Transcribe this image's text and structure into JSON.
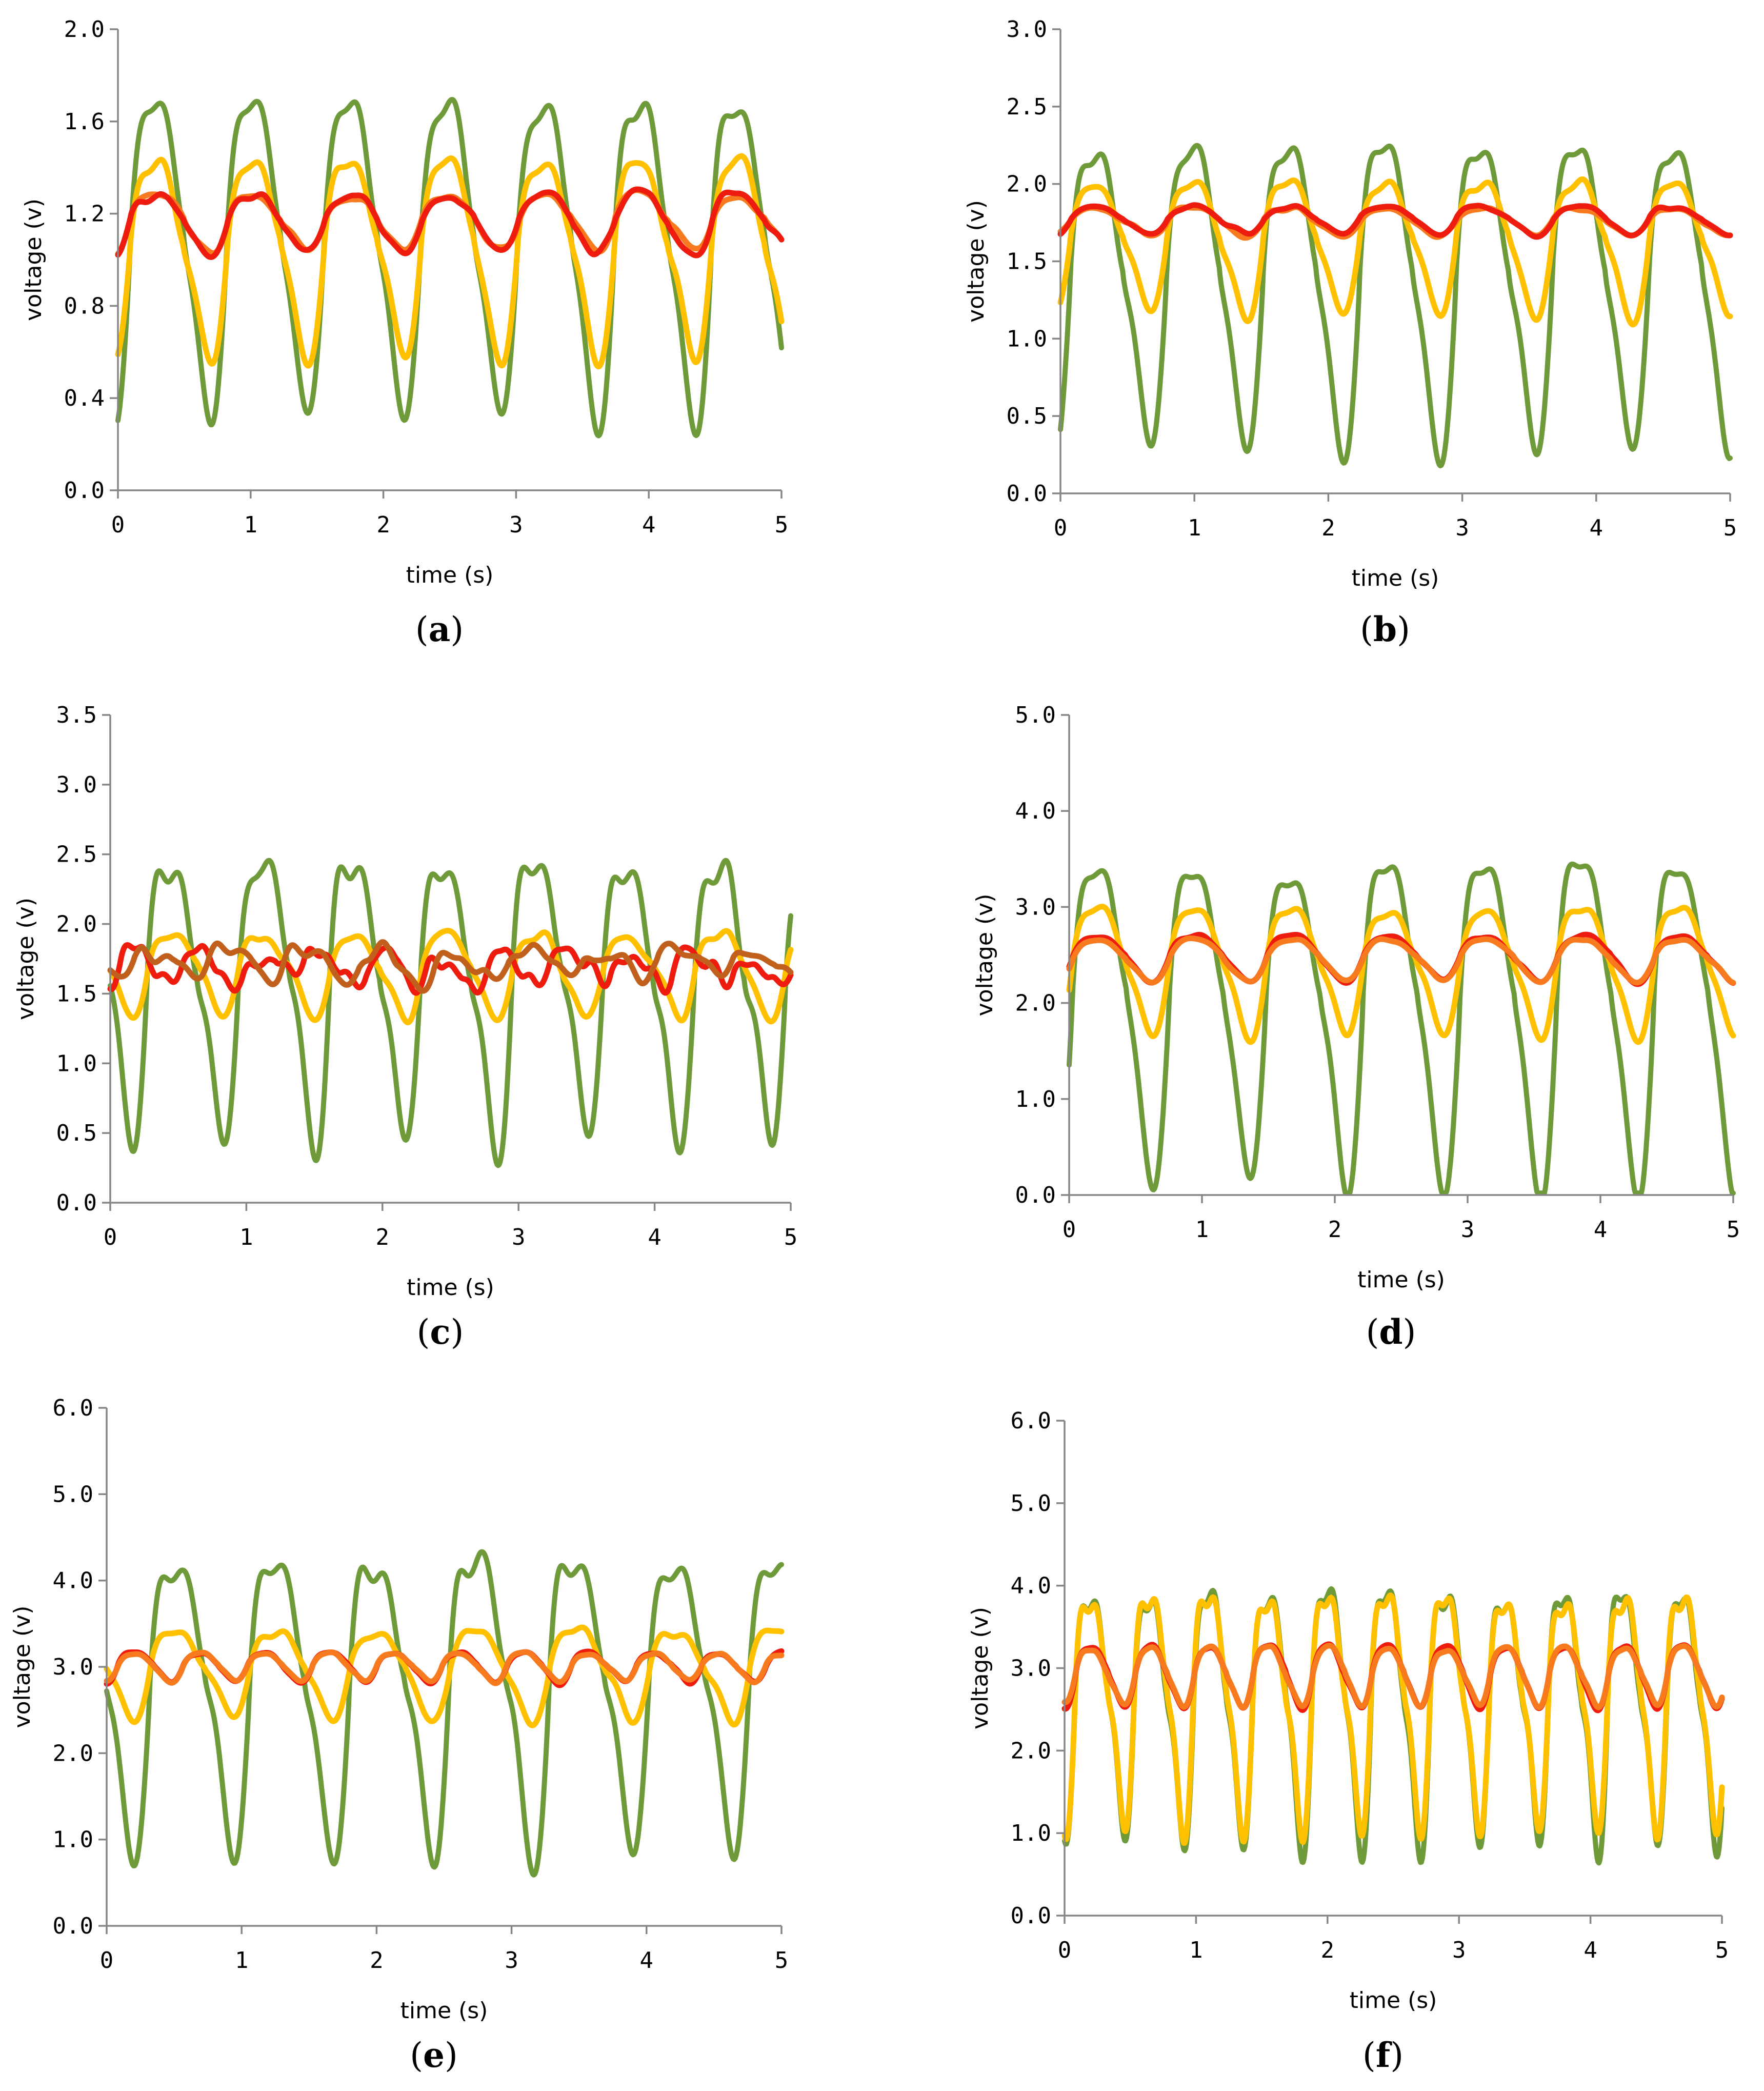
{
  "colors": {
    "green": "#6f9a3a",
    "yellow": "#ffc000",
    "red": "#ee1c0e",
    "orange": "#f77b1e",
    "brown": "#c0601c",
    "axis": "#868686"
  },
  "chart_data": [
    {
      "id": "a",
      "type": "line",
      "caption_letter": "a",
      "xlabel": "time (s)",
      "ylabel": "voltage (v)",
      "xlim": [
        0,
        5
      ],
      "ylim": [
        0,
        2
      ],
      "xticks": [
        "0",
        "1",
        "2",
        "3",
        "4",
        "5"
      ],
      "yticks": [
        "0.0",
        "0.4",
        "0.8",
        "1.2",
        "1.6",
        "2.0"
      ],
      "series": [
        {
          "name": "green",
          "color": "green",
          "mean": 1.12,
          "amp": 0.78,
          "period": 0.73,
          "phase": 0.12,
          "trend": 0,
          "h2": 0.25,
          "h3": 0.15,
          "noise": 0.02
        },
        {
          "name": "yellow",
          "color": "yellow",
          "mean": 1.08,
          "amp": 0.49,
          "period": 0.73,
          "phase": 0.12,
          "trend": 0,
          "h2": 0.25,
          "h3": 0.15,
          "noise": 0.02
        },
        {
          "name": "orange",
          "color": "orange",
          "mean": 1.18,
          "amp": 0.14,
          "period": 0.73,
          "phase": 0.12,
          "trend": 0,
          "h2": 0.2,
          "h3": 0.1,
          "noise": 0.02
        },
        {
          "name": "red",
          "color": "red",
          "mean": 1.18,
          "amp": 0.15,
          "period": 0.73,
          "phase": 0.12,
          "trend": 0,
          "h2": 0.2,
          "h3": 0.1,
          "noise": 0.025
        }
      ]
    },
    {
      "id": "b",
      "type": "line",
      "caption_letter": "b",
      "xlabel": "time (s)",
      "ylabel": "voltage (v)",
      "xlim": [
        0,
        5
      ],
      "ylim": [
        0,
        3
      ],
      "xticks": [
        "0",
        "1",
        "2",
        "3",
        "4",
        "5"
      ],
      "yticks": [
        "0.0",
        "0.5",
        "1.0",
        "1.5",
        "2.0",
        "2.5",
        "3.0"
      ],
      "series": [
        {
          "name": "green",
          "color": "green",
          "mean": 1.45,
          "amp": 1.1,
          "period": 0.72,
          "phase": 0.1,
          "trend": 0,
          "h2": 0.25,
          "h3": 0.15,
          "noise": 0.03
        },
        {
          "name": "yellow",
          "color": "yellow",
          "mean": 1.66,
          "amp": 0.48,
          "period": 0.72,
          "phase": 0.1,
          "trend": 0,
          "h2": 0.25,
          "h3": 0.15,
          "noise": 0.02
        },
        {
          "name": "orange",
          "color": "orange",
          "mean": 1.77,
          "amp": 0.1,
          "period": 0.72,
          "phase": 0.1,
          "trend": 0,
          "h2": 0.2,
          "h3": 0.1,
          "noise": 0.015
        },
        {
          "name": "red",
          "color": "red",
          "mean": 1.78,
          "amp": 0.1,
          "period": 0.72,
          "phase": 0.1,
          "trend": 0,
          "h2": 0.2,
          "h3": 0.1,
          "noise": 0.015
        }
      ]
    },
    {
      "id": "c",
      "type": "line",
      "caption_letter": "c",
      "xlabel": "time (s)",
      "ylabel": "voltage (v)",
      "xlim": [
        0,
        5
      ],
      "ylim": [
        0,
        3.5
      ],
      "xticks": [
        "0",
        "1",
        "2",
        "3",
        "4",
        "5"
      ],
      "yticks": [
        "0.0",
        "0.5",
        "1.0",
        "1.5",
        "2.0",
        "2.5",
        "3.0",
        "3.5"
      ],
      "series": [
        {
          "name": "green",
          "color": "green",
          "mean": 1.65,
          "amp": 1.15,
          "period": 0.67,
          "phase": 0.3,
          "trend": 0,
          "h2": 0.3,
          "h3": 0.2,
          "noise": 0.08
        },
        {
          "name": "yellow",
          "color": "yellow",
          "mean": 1.68,
          "amp": 0.33,
          "period": 0.67,
          "phase": 0.3,
          "trend": 0,
          "h2": 0.25,
          "h3": 0.15,
          "noise": 0.05
        },
        {
          "name": "red",
          "color": "red",
          "mean": 1.7,
          "amp": 0.12,
          "period": 0.45,
          "phase": 0.1,
          "trend": 0,
          "h2": 0.3,
          "h3": 0.3,
          "noise": 0.09
        },
        {
          "name": "brown",
          "color": "brown",
          "mean": 1.72,
          "amp": 0.12,
          "period": 0.55,
          "phase": 0.2,
          "trend": 0,
          "h2": 0.3,
          "h3": 0.2,
          "noise": 0.07
        }
      ]
    },
    {
      "id": "d",
      "type": "line",
      "caption_letter": "d",
      "xlabel": "time (s)",
      "ylabel": "voltage (v)",
      "xlim": [
        0,
        5
      ],
      "ylim": [
        0,
        5
      ],
      "xticks": [
        "0",
        "1",
        "2",
        "3",
        "4",
        "5"
      ],
      "yticks": [
        "0.0",
        "1.0",
        "2.0",
        "3.0",
        "4.0",
        "5.0"
      ],
      "series": [
        {
          "name": "green",
          "color": "green",
          "mean": 2.1,
          "amp": 1.95,
          "period": 0.73,
          "phase": 0.05,
          "trend": 0,
          "h2": 0.3,
          "h3": 0.15,
          "noise": 0.05
        },
        {
          "name": "yellow",
          "color": "yellow",
          "mean": 2.45,
          "amp": 0.75,
          "period": 0.73,
          "phase": 0.05,
          "trend": 0,
          "h2": 0.25,
          "h3": 0.15,
          "noise": 0.03
        },
        {
          "name": "red",
          "color": "red",
          "mean": 2.5,
          "amp": 0.27,
          "period": 0.73,
          "phase": 0.05,
          "trend": 0,
          "h2": 0.2,
          "h3": 0.1,
          "noise": 0.02
        },
        {
          "name": "orange",
          "color": "orange",
          "mean": 2.48,
          "amp": 0.25,
          "period": 0.73,
          "phase": 0.05,
          "trend": 0,
          "h2": 0.2,
          "h3": 0.1,
          "noise": 0.02
        }
      ]
    },
    {
      "id": "e",
      "type": "line",
      "caption_letter": "e",
      "xlabel": "time (s)",
      "ylabel": "voltage (v)",
      "xlim": [
        0,
        5
      ],
      "ylim": [
        0,
        6
      ],
      "xticks": [
        "0",
        "1",
        "2",
        "3",
        "4",
        "5"
      ],
      "yticks": [
        "0.0",
        "1.0",
        "2.0",
        "3.0",
        "4.0",
        "5.0",
        "6.0"
      ],
      "series": [
        {
          "name": "green",
          "color": "green",
          "mean": 2.9,
          "amp": 1.95,
          "period": 0.74,
          "phase": 0.35,
          "trend": 0,
          "h2": 0.3,
          "h3": 0.2,
          "noise": 0.1
        },
        {
          "name": "yellow",
          "color": "yellow",
          "mean": 3.0,
          "amp": 0.6,
          "period": 0.74,
          "phase": 0.35,
          "trend": 0,
          "h2": 0.25,
          "h3": 0.15,
          "noise": 0.05
        },
        {
          "name": "red",
          "color": "red",
          "mean": 3.02,
          "amp": 0.2,
          "period": 0.48,
          "phase": 0.1,
          "trend": 0,
          "h2": 0.2,
          "h3": 0.1,
          "noise": 0.02
        },
        {
          "name": "orange",
          "color": "orange",
          "mean": 3.02,
          "amp": 0.18,
          "period": 0.48,
          "phase": 0.1,
          "trend": 0,
          "h2": 0.2,
          "h3": 0.1,
          "noise": 0.02
        }
      ]
    },
    {
      "id": "f",
      "type": "line",
      "caption_letter": "f",
      "xlabel": "time (s)",
      "ylabel": "voltage (v)",
      "xlim": [
        0,
        5
      ],
      "ylim": [
        0,
        6
      ],
      "xticks": [
        "0",
        "1",
        "2",
        "3",
        "4",
        "5"
      ],
      "yticks": [
        "0.0",
        "1.0",
        "2.0",
        "3.0",
        "4.0",
        "5.0",
        "6.0"
      ],
      "series": [
        {
          "name": "green",
          "color": "green",
          "mean": 2.7,
          "amp": 1.75,
          "period": 0.45,
          "phase": 0.1,
          "trend": 0,
          "h2": 0.3,
          "h3": 0.2,
          "noise": 0.08
        },
        {
          "name": "yellow",
          "color": "yellow",
          "mean": 2.75,
          "amp": 1.65,
          "period": 0.45,
          "phase": 0.1,
          "trend": 0,
          "h2": 0.3,
          "h3": 0.2,
          "noise": 0.06
        },
        {
          "name": "red",
          "color": "red",
          "mean": 2.95,
          "amp": 0.42,
          "period": 0.45,
          "phase": 0.1,
          "trend": 0,
          "h2": 0.2,
          "h3": 0.1,
          "noise": 0.03
        },
        {
          "name": "orange",
          "color": "orange",
          "mean": 2.95,
          "amp": 0.4,
          "period": 0.45,
          "phase": 0.1,
          "trend": 0,
          "h2": 0.2,
          "h3": 0.1,
          "noise": 0.03
        }
      ]
    }
  ]
}
